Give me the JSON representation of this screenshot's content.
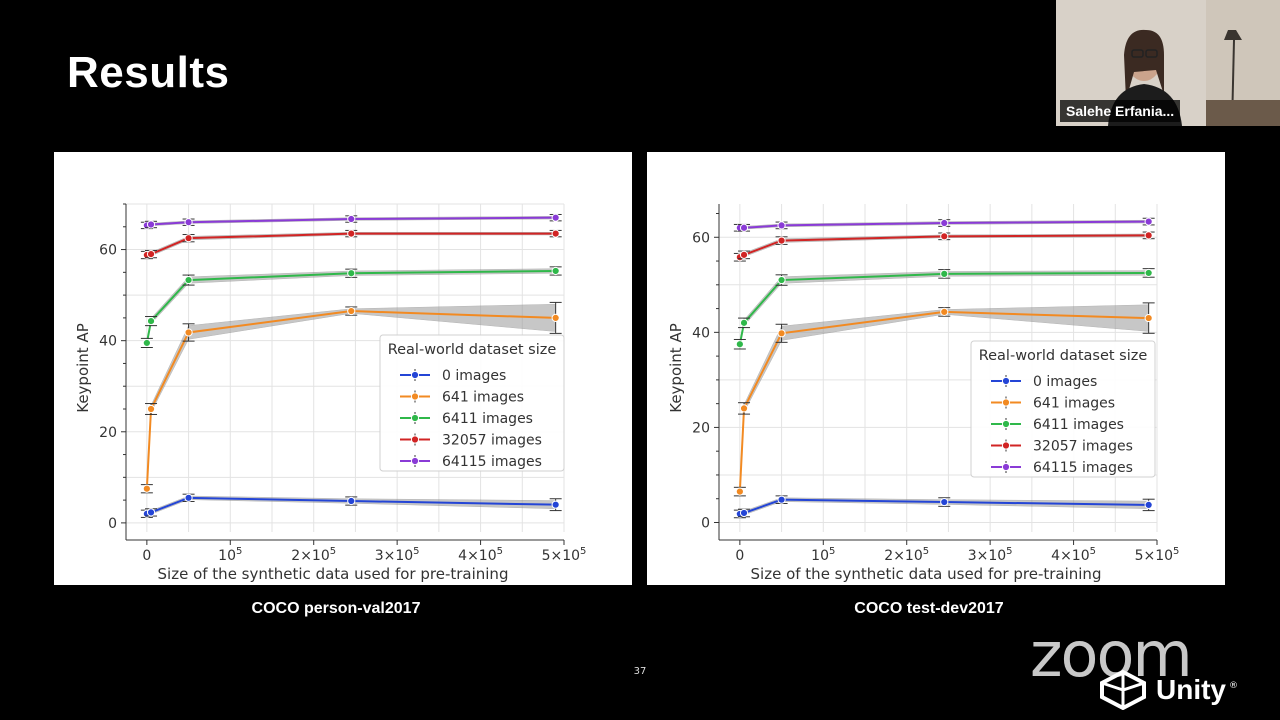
{
  "slide": {
    "title": "Results",
    "page_number": "37"
  },
  "video": {
    "participant_name": "Salehe Erfania..."
  },
  "branding": {
    "zoom_text": "zoom",
    "unity_text": "Unity",
    "unity_mark": "®"
  },
  "captions": [
    "COCO person-val2017",
    "COCO test-dev2017"
  ],
  "colors": {
    "0 images": "#2445d6",
    "641 images": "#f28a22",
    "6411 images": "#2fb84a",
    "32057 images": "#d12424",
    "64115 images": "#8a3bd6"
  },
  "chart_data": [
    {
      "type": "line",
      "title": "",
      "xlabel": "Size of the synthetic data used for pre-training",
      "ylabel": "Keypoint AP",
      "xlim": [
        -25000,
        500000
      ],
      "ylim": [
        -2,
        70
      ],
      "xticks": [
        0,
        100000,
        200000,
        300000,
        400000,
        500000
      ],
      "xtick_labels": [
        {
          "base": "0",
          "exp": ""
        },
        {
          "base": "10",
          "exp": "5"
        },
        {
          "base": "2×10",
          "exp": "5"
        },
        {
          "base": "3×10",
          "exp": "5"
        },
        {
          "base": "4×10",
          "exp": "5"
        },
        {
          "base": "5×10",
          "exp": "5"
        }
      ],
      "yticks": [
        0,
        20,
        40,
        60
      ],
      "legend": {
        "title": "Real-world dataset size",
        "position": "center-right"
      },
      "x": [
        0,
        5000,
        50000,
        245000,
        490000
      ],
      "series": [
        {
          "name": "0 images",
          "values": [
            2.0,
            2.3,
            5.5,
            4.8,
            4.0
          ],
          "ci": [
            0.4,
            0.4,
            0.4,
            0.5,
            0.9
          ]
        },
        {
          "name": "641 images",
          "values": [
            7.5,
            25.0,
            41.8,
            46.5,
            45.0
          ],
          "ci": [
            0.5,
            0.8,
            1.5,
            0.5,
            3.0
          ]
        },
        {
          "name": "6411 images",
          "values": [
            39.5,
            44.3,
            53.3,
            54.8,
            55.3
          ],
          "ci": [
            0.6,
            0.6,
            0.7,
            0.5,
            0.5
          ]
        },
        {
          "name": "32057 images",
          "values": [
            58.8,
            59.0,
            62.5,
            63.5,
            63.5
          ],
          "ci": [
            0.4,
            0.4,
            0.4,
            0.3,
            0.3
          ]
        },
        {
          "name": "64115 images",
          "values": [
            65.3,
            65.5,
            66.0,
            66.7,
            67.0
          ],
          "ci": [
            0.3,
            0.3,
            0.3,
            0.3,
            0.3
          ]
        }
      ]
    },
    {
      "type": "line",
      "title": "",
      "xlabel": "Size of the synthetic data used for pre-training",
      "ylabel": "Keypoint AP",
      "xlim": [
        -25000,
        500000
      ],
      "ylim": [
        -2,
        67
      ],
      "xticks": [
        0,
        100000,
        200000,
        300000,
        400000,
        500000
      ],
      "xtick_labels": [
        {
          "base": "0",
          "exp": ""
        },
        {
          "base": "10",
          "exp": "5"
        },
        {
          "base": "2×10",
          "exp": "5"
        },
        {
          "base": "3×10",
          "exp": "5"
        },
        {
          "base": "4×10",
          "exp": "5"
        },
        {
          "base": "5×10",
          "exp": "5"
        }
      ],
      "yticks": [
        0,
        20,
        40,
        60
      ],
      "legend": {
        "title": "Real-world dataset size",
        "position": "center-right"
      },
      "x": [
        0,
        5000,
        50000,
        245000,
        490000
      ],
      "series": [
        {
          "name": "0 images",
          "values": [
            1.8,
            2.0,
            4.8,
            4.3,
            3.7
          ],
          "ci": [
            0.4,
            0.4,
            0.4,
            0.5,
            0.8
          ]
        },
        {
          "name": "641 images",
          "values": [
            6.5,
            24.0,
            39.8,
            44.3,
            43.0
          ],
          "ci": [
            0.5,
            0.8,
            1.5,
            0.5,
            2.8
          ]
        },
        {
          "name": "6411 images",
          "values": [
            37.5,
            42.0,
            51.0,
            52.3,
            52.5
          ],
          "ci": [
            0.6,
            0.6,
            0.7,
            0.5,
            0.5
          ]
        },
        {
          "name": "32057 images",
          "values": [
            55.8,
            56.3,
            59.3,
            60.2,
            60.4
          ],
          "ci": [
            0.4,
            0.4,
            0.4,
            0.3,
            0.3
          ]
        },
        {
          "name": "64115 images",
          "values": [
            62.0,
            62.0,
            62.5,
            63.0,
            63.3
          ],
          "ci": [
            0.3,
            0.3,
            0.3,
            0.3,
            0.3
          ]
        }
      ]
    }
  ]
}
